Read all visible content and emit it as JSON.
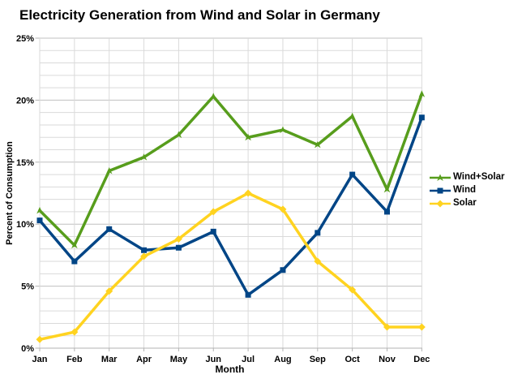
{
  "title": "Electricity Generation from Wind and Solar in Germany",
  "colors": {
    "wind_solar": "#579D1C",
    "wind": "#004586",
    "solar": "#FFD320",
    "grid_minor": "#dadada",
    "grid_major": "#c0c0c0",
    "axis": "#b3b3b3",
    "text": "#000000",
    "background": "#ffffff"
  },
  "chart_data": {
    "type": "line",
    "title": "Electricity Generation from Wind and Solar in Germany",
    "xlabel": "Month",
    "ylabel": "Percent of Consumption",
    "x": [
      "Jan",
      "Feb",
      "Mar",
      "Apr",
      "May",
      "Jun",
      "Jul",
      "Aug",
      "Sep",
      "Oct",
      "Nov",
      "Dec"
    ],
    "series": [
      {
        "name": "Wind+Solar",
        "color": "#579D1C",
        "marker": "arrow",
        "values": [
          11.1,
          8.3,
          14.3,
          15.4,
          17.2,
          20.3,
          17.0,
          17.6,
          16.4,
          18.7,
          12.8,
          20.5
        ]
      },
      {
        "name": "Wind",
        "color": "#004586",
        "marker": "square",
        "values": [
          10.3,
          7.0,
          9.6,
          7.9,
          8.1,
          9.4,
          4.3,
          6.3,
          9.3,
          14.0,
          11.0,
          18.6
        ]
      },
      {
        "name": "Solar",
        "color": "#FFD320",
        "marker": "diamond",
        "values": [
          0.7,
          1.3,
          4.6,
          7.4,
          8.8,
          11.0,
          12.5,
          11.2,
          7.0,
          4.7,
          1.7,
          1.7
        ]
      }
    ],
    "ylim": [
      0,
      25
    ],
    "y_major_step": 5,
    "y_minor_step": 1,
    "y_tick_labels": [
      "0%",
      "5%",
      "10%",
      "15%",
      "20%",
      "25%"
    ],
    "grid": true,
    "legend_position": "right"
  }
}
